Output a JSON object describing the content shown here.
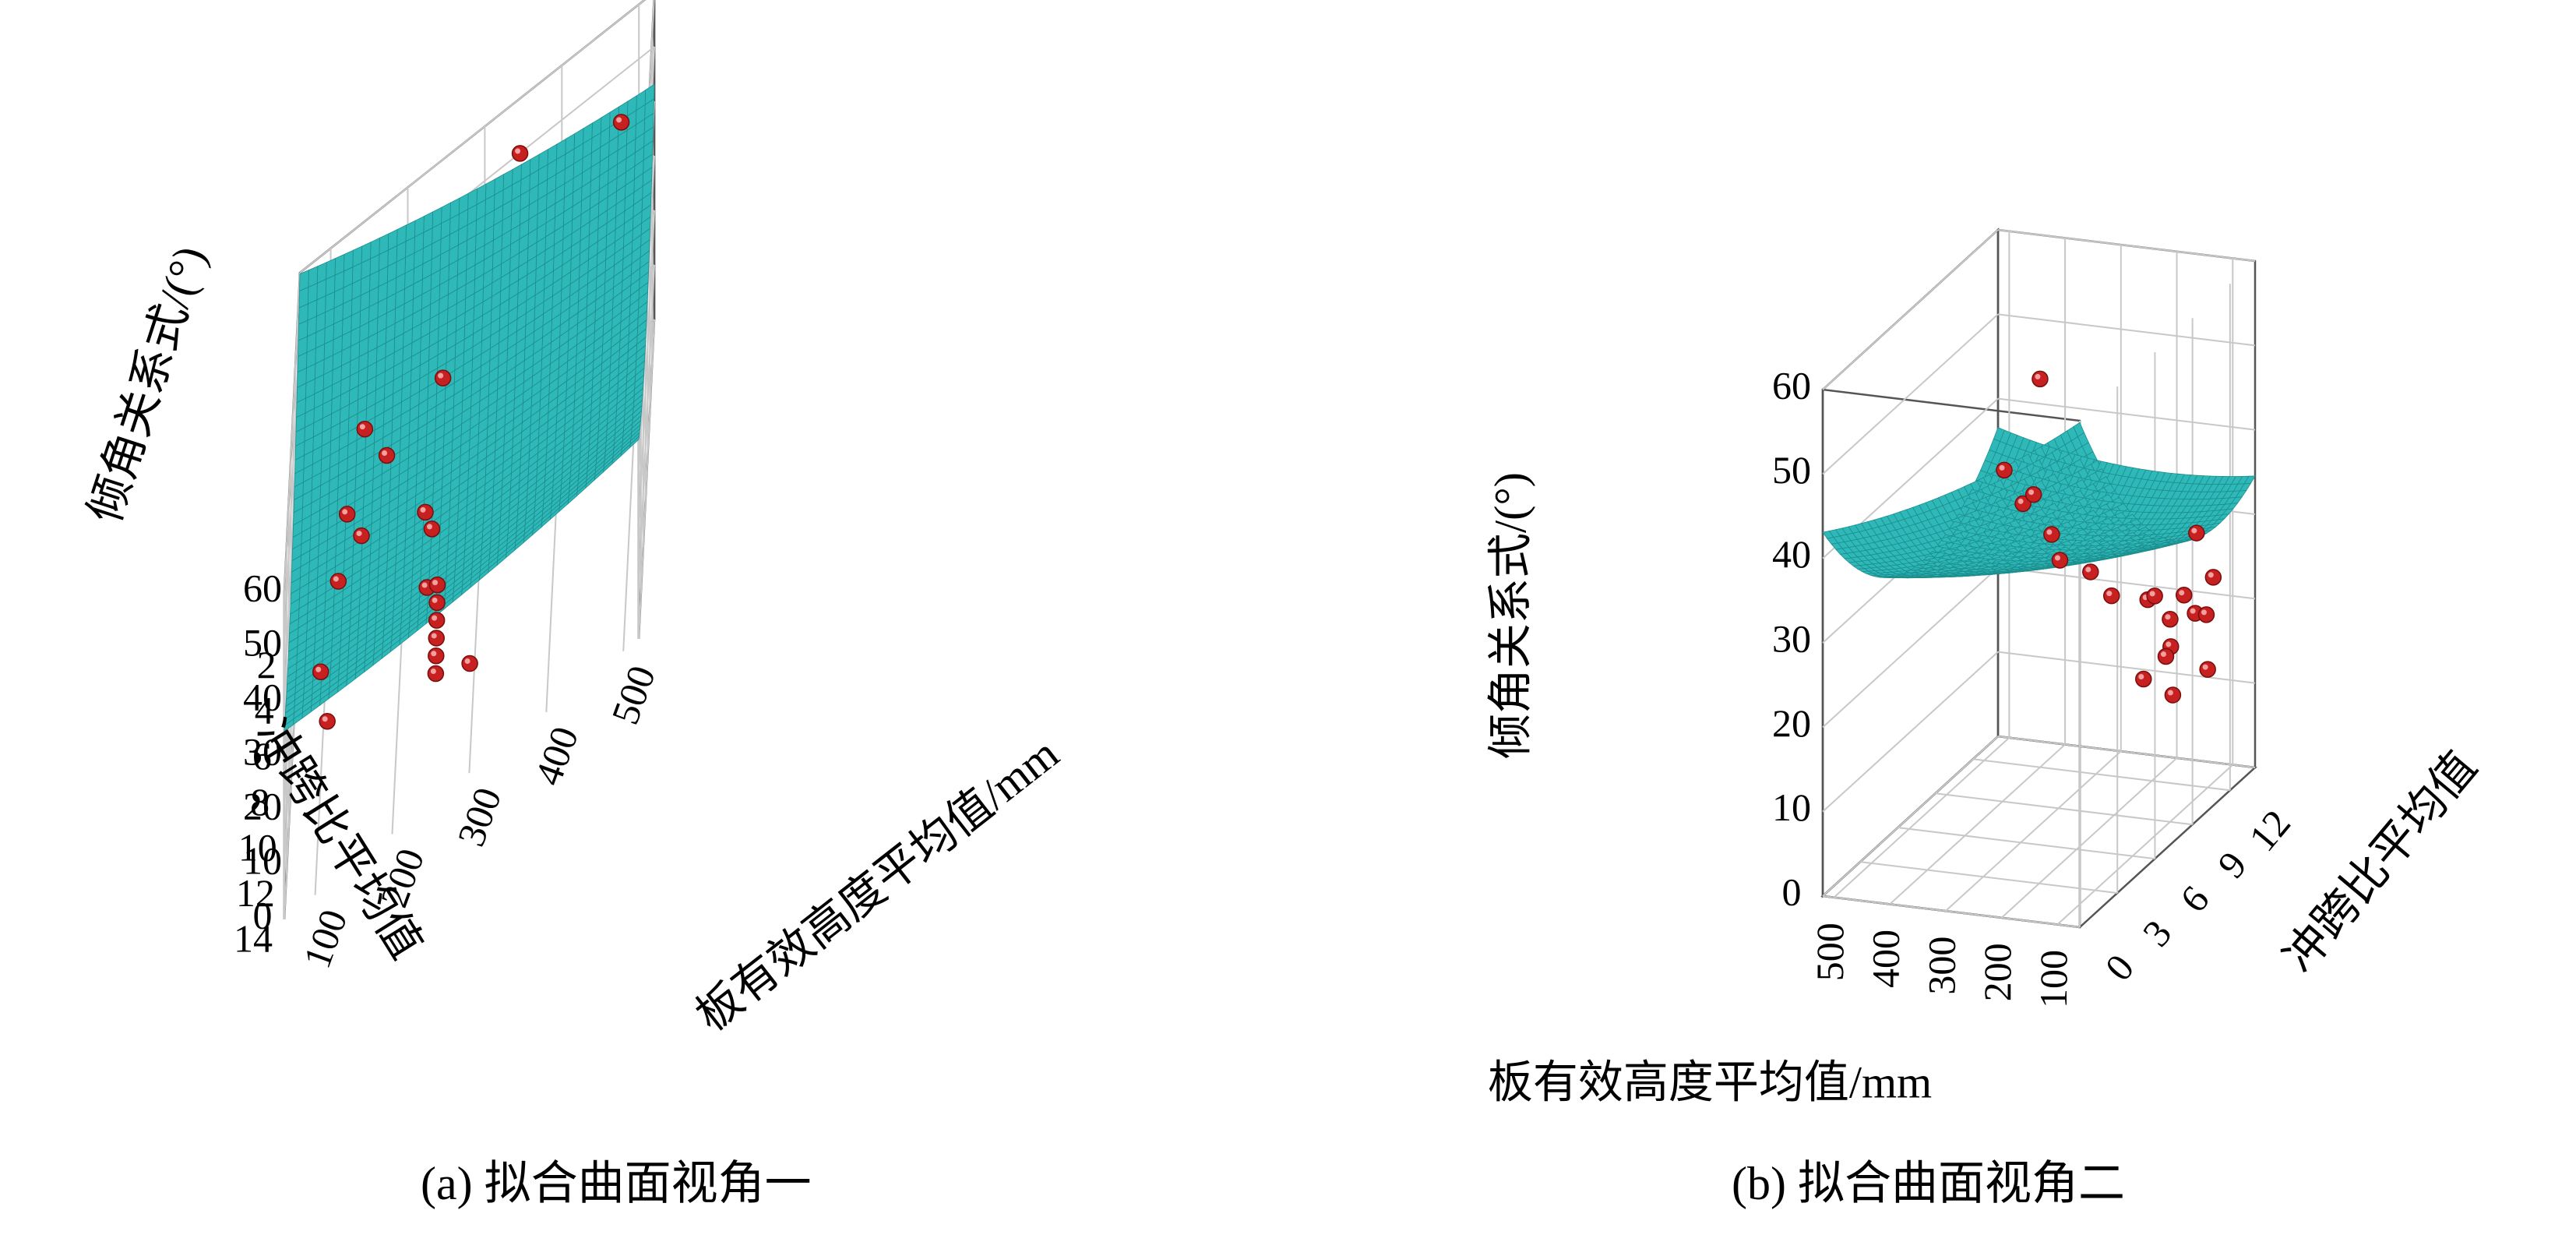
{
  "figure": {
    "caption_a": "(a) 拟合曲面视角一",
    "caption_b": "(b) 拟合曲面视角二"
  },
  "colors": {
    "surface": "#2fb8b8",
    "surface_mesh": "#1c8e8e",
    "point": "#c62020",
    "grid": "#c8c8c8",
    "box": "#555555"
  },
  "chart_data": [
    {
      "type": "surface",
      "title": "",
      "xlabel": "板有效高度平均值/mm",
      "ylabel": "冲跨比平均值",
      "zlabel": "倾角关系式/(°)",
      "x_ticks": [
        "100",
        "200",
        "300",
        "400",
        "500"
      ],
      "y_ticks": [
        "2",
        "4",
        "6",
        "8",
        "10",
        "12",
        "14"
      ],
      "z_ticks": [
        "0",
        "10",
        "20",
        "30",
        "40",
        "50",
        "60"
      ],
      "xlim": [
        60,
        520
      ],
      "ylim": [
        0,
        14
      ],
      "zlim": [
        0,
        60
      ],
      "surface_model": {
        "a": 63.0,
        "b": -0.0556,
        "c": -5.03,
        "d": 3.33e-05,
        "e": 0.218,
        "f": 0.00291
      },
      "points": [
        {
          "x": 300,
          "y": 13.5,
          "z": 18
        },
        {
          "x": 480,
          "y": 2,
          "z": 49
        },
        {
          "x": 350,
          "y": 3,
          "z": 62
        },
        {
          "x": 250,
          "y": 3,
          "z": 32
        },
        {
          "x": 150,
          "y": 4,
          "z": 38
        },
        {
          "x": 180,
          "y": 5,
          "z": 34
        },
        {
          "x": 130,
          "y": 6,
          "z": 33
        },
        {
          "x": 150,
          "y": 7,
          "z": 31
        },
        {
          "x": 230,
          "y": 5,
          "z": 18
        },
        {
          "x": 240,
          "y": 6,
          "z": 18
        },
        {
          "x": 235,
          "y": 7,
          "z": 12
        },
        {
          "x": 120,
          "y": 7,
          "z": 26
        },
        {
          "x": 250,
          "y": 8,
          "z": 15
        },
        {
          "x": 250,
          "y": 8.3,
          "z": 13
        },
        {
          "x": 250,
          "y": 8.6,
          "z": 11
        },
        {
          "x": 250,
          "y": 8.9,
          "z": 9
        },
        {
          "x": 250,
          "y": 9.2,
          "z": 7
        },
        {
          "x": 250,
          "y": 9.5,
          "z": 5
        },
        {
          "x": 100,
          "y": 9,
          "z": 20
        },
        {
          "x": 110,
          "y": 10,
          "z": 14
        }
      ]
    },
    {
      "type": "surface",
      "title": "",
      "xlabel": "板有效高度平均值/mm",
      "ylabel": "冲跨比平均值",
      "zlabel": "倾角关系式/(°)",
      "x_ticks": [
        "500",
        "400",
        "300",
        "200",
        "100"
      ],
      "y_ticks": [
        "0",
        "3",
        "6",
        "9",
        "12"
      ],
      "z_ticks": [
        "0",
        "10",
        "20",
        "30",
        "40",
        "50",
        "60"
      ],
      "xlim": [
        60,
        520
      ],
      "ylim": [
        0,
        14
      ],
      "zlim": [
        0,
        60
      ],
      "surface_model": {
        "a": 63.0,
        "b": -0.0556,
        "c": -5.03,
        "d": 3.33e-05,
        "e": 0.218,
        "f": 0.00291
      },
      "points": [
        {
          "x": 400,
          "y": 12,
          "z": 46
        },
        {
          "x": 240,
          "y": 2,
          "z": 50
        },
        {
          "x": 240,
          "y": 3.5,
          "z": 44
        },
        {
          "x": 210,
          "y": 3,
          "z": 46
        },
        {
          "x": 200,
          "y": 4,
          "z": 40
        },
        {
          "x": 230,
          "y": 6,
          "z": 34
        },
        {
          "x": 220,
          "y": 8,
          "z": 30
        },
        {
          "x": 120,
          "y": 12,
          "z": 30
        },
        {
          "x": 160,
          "y": 7,
          "z": 29
        },
        {
          "x": 140,
          "y": 9,
          "z": 26
        },
        {
          "x": 150,
          "y": 10,
          "z": 25
        },
        {
          "x": 120,
          "y": 11,
          "z": 24
        },
        {
          "x": 100,
          "y": 9,
          "z": 24
        },
        {
          "x": 100,
          "y": 11,
          "z": 22
        },
        {
          "x": 110,
          "y": 9.5,
          "z": 20
        },
        {
          "x": 130,
          "y": 10,
          "z": 18
        },
        {
          "x": 80,
          "y": 11,
          "z": 22
        },
        {
          "x": 90,
          "y": 12,
          "z": 25
        },
        {
          "x": 170,
          "y": 10,
          "z": 15
        },
        {
          "x": 100,
          "y": 12,
          "z": 14
        },
        {
          "x": 140,
          "y": 11,
          "z": 12
        }
      ]
    }
  ]
}
